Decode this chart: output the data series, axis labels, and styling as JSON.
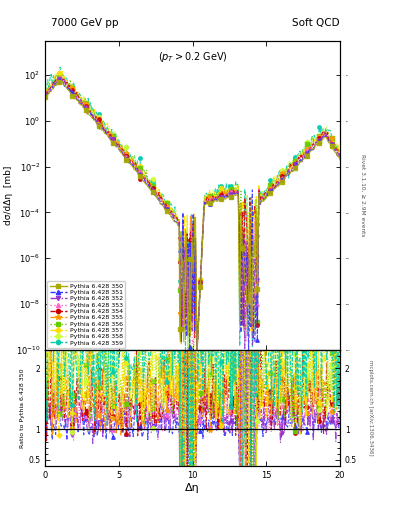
{
  "title_left": "7000 GeV pp",
  "title_right": "Soft QCD",
  "annotation": "(p_{T} > 0.2 GeV)",
  "ylabel_main": "dσ/dΔη  [mb]",
  "ylabel_ratio": "Ratio to Pythia 6.428 350",
  "xlabel": "Δη",
  "right_label_top": "Rivet 3.1.10, ≥ 2.9M events",
  "right_label_bot": "mcplots.cern.ch [arXiv:1306.3436]",
  "ylim_main": [
    1e-10,
    3000.0
  ],
  "ylim_ratio": [
    0.4,
    2.3
  ],
  "xlim": [
    0,
    20
  ],
  "yticks_ratio_left": [
    0.5,
    1.0,
    2.0
  ],
  "yticks_ratio_right": [
    0.5,
    1.0,
    2.0
  ],
  "series": [
    {
      "label": "Pythia 6.428 350",
      "color": "#aaaa00",
      "marker": "s",
      "ls": "-",
      "lw": 0.8,
      "ms": 2.5
    },
    {
      "label": "Pythia 6.428 351",
      "color": "#3333ff",
      "marker": "^",
      "ls": "--",
      "lw": 0.8,
      "ms": 2.5
    },
    {
      "label": "Pythia 6.428 352",
      "color": "#9933cc",
      "marker": "v",
      "ls": "-.",
      "lw": 0.8,
      "ms": 2.5
    },
    {
      "label": "Pythia 6.428 353",
      "color": "#ff66cc",
      "marker": "^",
      "ls": ":",
      "lw": 0.8,
      "ms": 2.5
    },
    {
      "label": "Pythia 6.428 354",
      "color": "#cc0000",
      "marker": "o",
      "ls": "--",
      "lw": 0.8,
      "ms": 2.5
    },
    {
      "label": "Pythia 6.428 355",
      "color": "#ff9900",
      "marker": "*",
      "ls": "--",
      "lw": 0.8,
      "ms": 3.5
    },
    {
      "label": "Pythia 6.428 356",
      "color": "#66cc00",
      "marker": "s",
      "ls": ":",
      "lw": 0.8,
      "ms": 2.5
    },
    {
      "label": "Pythia 6.428 357",
      "color": "#ffdd00",
      "marker": "D",
      "ls": "-.",
      "lw": 0.8,
      "ms": 2.5
    },
    {
      "label": "Pythia 6.428 358",
      "color": "#ccff33",
      "marker": "D",
      "ls": ":",
      "lw": 0.8,
      "ms": 2.5
    },
    {
      "label": "Pythia 6.428 359",
      "color": "#00ccaa",
      "marker": "o",
      "ls": "--",
      "lw": 0.8,
      "ms": 2.5
    }
  ]
}
